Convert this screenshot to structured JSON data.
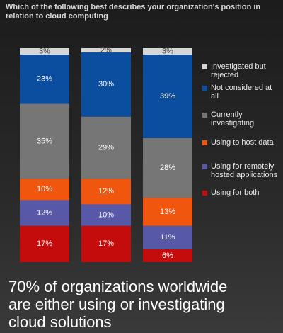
{
  "chart_data": {
    "type": "stacked_bar",
    "title": "Which of the following best describes your organization's position in relation to cloud computing",
    "caption": "70% of organizations worldwide are either using or investigating cloud solutions",
    "categories": [
      null,
      null,
      null
    ],
    "series": [
      {
        "name": "Using for both",
        "color": "#c40c0c",
        "values": [
          17,
          17,
          6
        ],
        "value_labels": [
          "17%",
          "17%",
          "6%"
        ]
      },
      {
        "name": "Using for remotely hosted applications",
        "color": "#5858a8",
        "values": [
          12,
          10,
          11
        ],
        "value_labels": [
          "12%",
          "10%",
          "11%"
        ]
      },
      {
        "name": "Using to host data",
        "color": "#f0560e",
        "values": [
          10,
          12,
          13
        ],
        "value_labels": [
          "10%",
          "12%",
          "13%"
        ]
      },
      {
        "name": "Currently investigating",
        "color": "#767676",
        "values": [
          35,
          29,
          28
        ],
        "value_labels": [
          "35%",
          "29%",
          "28%"
        ]
      },
      {
        "name": "Not considered at all",
        "color": "#0b4d9e",
        "values": [
          23,
          30,
          39
        ],
        "value_labels": [
          "23%",
          "30%",
          "39%"
        ]
      },
      {
        "name": "Investigated but rejected",
        "color": "#d6d6d6",
        "values": [
          3,
          2,
          3
        ],
        "value_labels": [
          "3%",
          "2%",
          "3%"
        ]
      }
    ]
  }
}
